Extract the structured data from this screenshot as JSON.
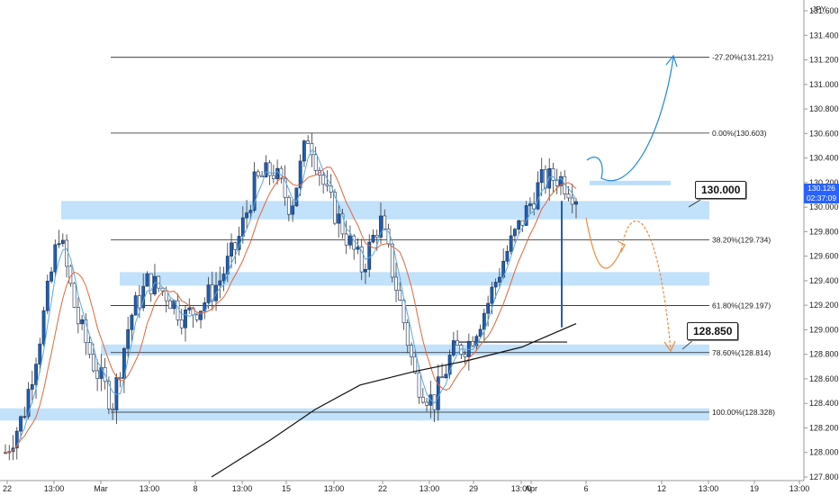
{
  "chart_data": {
    "type": "candlestick",
    "currency": "JPY",
    "ylim": [
      127.8,
      131.6
    ],
    "y_ticks": [
      "131.600",
      "131.400",
      "131.200",
      "131.000",
      "130.800",
      "130.600",
      "130.400",
      "130.200",
      "130.000",
      "129.800",
      "129.600",
      "129.400",
      "129.200",
      "129.000",
      "128.800",
      "128.600",
      "128.400",
      "128.200",
      "128.000",
      "127.800"
    ],
    "x_ticks": [
      "22",
      "13:00",
      "Mar",
      "13:00",
      "8",
      "13:00",
      "15",
      "13:00",
      "22",
      "13:00",
      "29",
      "13:00",
      "Apr",
      "6",
      "12",
      "13:00",
      "19",
      "13:00"
    ],
    "last_price": "130.126",
    "countdown": "02:37:09",
    "fib_levels": [
      {
        "label": "-27.20%(131.221)",
        "price": 131.221
      },
      {
        "label": "0.00%(130.603)",
        "price": 130.603
      },
      {
        "label": "38.20%(129.734)",
        "price": 129.734
      },
      {
        "label": "61.80%(129.197)",
        "price": 129.197
      },
      {
        "label": "78.60%(128.814)",
        "price": 128.814
      },
      {
        "label": "100.00%(128.328)",
        "price": 128.328
      }
    ],
    "zones": [
      {
        "low": 129.9,
        "high": 130.05
      },
      {
        "low": 129.36,
        "high": 129.47
      },
      {
        "low": 128.79,
        "high": 128.88
      },
      {
        "low": 128.26,
        "high": 128.36
      }
    ],
    "key_levels": [
      "130.000",
      "128.850"
    ],
    "price_path": [
      128.0,
      128.3,
      129.0,
      129.8,
      129.1,
      128.7,
      128.4,
      129.1,
      129.4,
      129.3,
      129.1,
      129.2,
      129.4,
      129.7,
      130.2,
      130.3,
      130.0,
      130.6,
      130.1,
      129.8,
      129.5,
      129.9,
      129.3,
      128.6,
      128.4,
      128.8,
      128.9,
      129.2,
      129.6,
      129.9,
      130.2,
      130.25,
      130.1
    ]
  }
}
